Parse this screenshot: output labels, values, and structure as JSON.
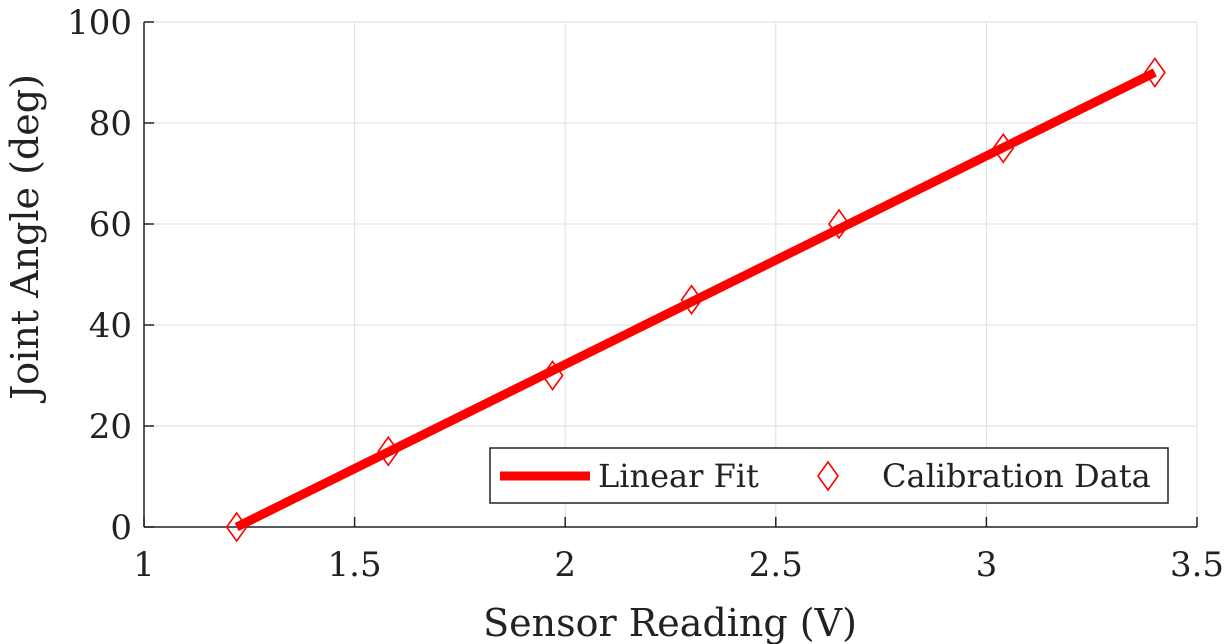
{
  "chart_data": {
    "type": "line",
    "xlabel": "Sensor Reading (V)",
    "ylabel": "Joint Angle (deg)",
    "xlim": [
      1,
      3.5
    ],
    "ylim": [
      0,
      100
    ],
    "xticks": [
      1,
      1.5,
      2,
      2.5,
      3,
      3.5
    ],
    "yticks": [
      0,
      20,
      40,
      60,
      80,
      100
    ],
    "xtick_labels": [
      "1",
      "1.5",
      "2",
      "2.5",
      "3",
      "3.5"
    ],
    "ytick_labels": [
      "0",
      "20",
      "40",
      "60",
      "80",
      "100"
    ],
    "grid": true,
    "legend_position": "bottom-right",
    "series": [
      {
        "name": "Linear Fit",
        "type": "line",
        "color": "#ff0000",
        "x": [
          1.22,
          3.4
        ],
        "y": [
          0,
          90
        ]
      },
      {
        "name": "Calibration Data",
        "type": "scatter",
        "marker": "diamond",
        "color": "#ff0000",
        "x": [
          1.22,
          1.58,
          1.97,
          2.3,
          2.65,
          3.04,
          3.4
        ],
        "y": [
          0,
          15,
          30,
          45,
          60,
          75,
          90
        ]
      }
    ]
  }
}
